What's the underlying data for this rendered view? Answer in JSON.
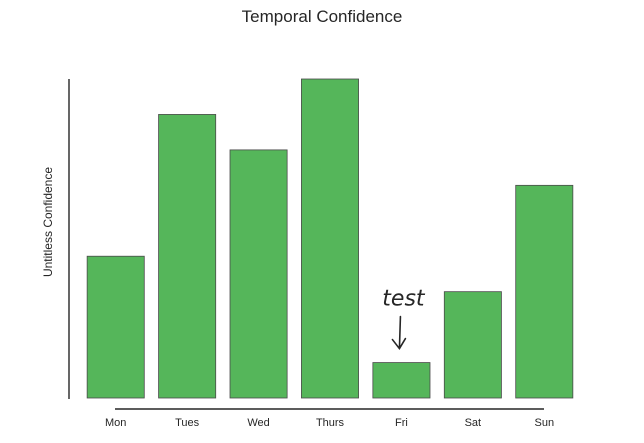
{
  "chart_data": {
    "type": "bar",
    "title": "Temporal Confidence",
    "xlabel": "",
    "ylabel": "Untitless Confidence",
    "categories": [
      "Mon",
      "Tues",
      "Wed",
      "Thurs",
      "Fri",
      "Sat",
      "Sun"
    ],
    "values": [
      40,
      80,
      70,
      90,
      10,
      30,
      60
    ],
    "ylim": [
      0,
      90
    ],
    "grid": false,
    "legend": "none",
    "bar_color": "#55b65a",
    "annotations": [
      {
        "text": "test",
        "category": "Fri",
        "arrow": true
      }
    ]
  }
}
